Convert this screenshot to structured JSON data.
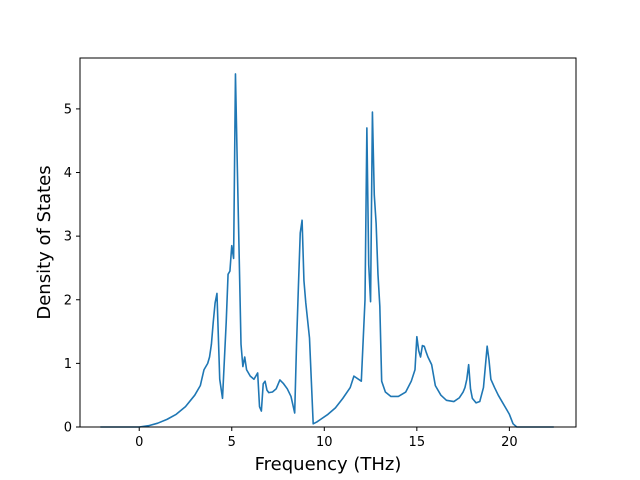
{
  "chart_data": {
    "type": "line",
    "title": "",
    "xlabel": "Frequency (THz)",
    "ylabel": "Density of States",
    "xlim": [
      -3.2,
      23.6
    ],
    "ylim": [
      0,
      5.8
    ],
    "xticks": [
      0,
      5,
      10,
      15,
      20
    ],
    "yticks": [
      0,
      1,
      2,
      3,
      4,
      5
    ],
    "grid": false,
    "legend": "none",
    "line_color": "#1f77b4",
    "series": [
      {
        "x": [
          -2.1,
          -1.0,
          0.0,
          0.5,
          1.0,
          1.5,
          2.0,
          2.5,
          3.0,
          3.3,
          3.5,
          3.7,
          3.8,
          3.9,
          4.0,
          4.1,
          4.2,
          4.35,
          4.5,
          4.7,
          4.8,
          4.9,
          5.0,
          5.1,
          5.2,
          5.3,
          5.4,
          5.5,
          5.6,
          5.7,
          5.8,
          6.0,
          6.2,
          6.4,
          6.5,
          6.6,
          6.7,
          6.8,
          6.9,
          7.0,
          7.2,
          7.4,
          7.6,
          7.8,
          8.0,
          8.2,
          8.4,
          8.5,
          8.6,
          8.7,
          8.8,
          8.9,
          9.0,
          9.2,
          9.4,
          9.6,
          9.8,
          10.2,
          10.6,
          11.0,
          11.4,
          11.6,
          12.0,
          12.2,
          12.3,
          12.4,
          12.5,
          12.6,
          12.7,
          12.8,
          12.9,
          13.0,
          13.1,
          13.3,
          13.6,
          14.0,
          14.4,
          14.7,
          14.9,
          15.0,
          15.1,
          15.2,
          15.3,
          15.4,
          15.5,
          15.6,
          15.8,
          16.0,
          16.3,
          16.6,
          17.0,
          17.3,
          17.5,
          17.6,
          17.7,
          17.8,
          17.9,
          18.0,
          18.2,
          18.4,
          18.6,
          18.8,
          18.9,
          19.0,
          19.2,
          19.4,
          19.6,
          19.8,
          20.0,
          20.2,
          20.4,
          20.6,
          21.0,
          21.5,
          22.0,
          22.4
        ],
        "y": [
          0.0,
          0.0,
          0.0,
          0.02,
          0.06,
          0.12,
          0.2,
          0.32,
          0.5,
          0.65,
          0.9,
          1.0,
          1.1,
          1.3,
          1.65,
          1.95,
          2.1,
          0.75,
          0.45,
          1.65,
          2.4,
          2.45,
          2.85,
          2.65,
          5.55,
          4.1,
          2.7,
          1.3,
          0.95,
          1.1,
          0.9,
          0.8,
          0.75,
          0.85,
          0.32,
          0.25,
          0.68,
          0.72,
          0.58,
          0.54,
          0.55,
          0.6,
          0.74,
          0.68,
          0.6,
          0.48,
          0.22,
          1.3,
          2.2,
          3.05,
          3.25,
          2.3,
          1.95,
          1.4,
          0.05,
          0.08,
          0.12,
          0.2,
          0.3,
          0.45,
          0.62,
          0.8,
          0.72,
          2.0,
          4.7,
          2.55,
          1.97,
          4.95,
          3.65,
          3.2,
          2.4,
          1.9,
          0.72,
          0.55,
          0.48,
          0.48,
          0.55,
          0.72,
          0.9,
          1.42,
          1.2,
          1.1,
          1.28,
          1.27,
          1.18,
          1.1,
          0.98,
          0.65,
          0.5,
          0.42,
          0.4,
          0.46,
          0.55,
          0.62,
          0.75,
          0.98,
          0.6,
          0.45,
          0.38,
          0.4,
          0.62,
          1.27,
          1.05,
          0.75,
          0.62,
          0.5,
          0.4,
          0.3,
          0.2,
          0.05,
          0.0,
          0.0,
          0.0,
          0.0,
          0.0,
          0.0
        ]
      }
    ]
  }
}
